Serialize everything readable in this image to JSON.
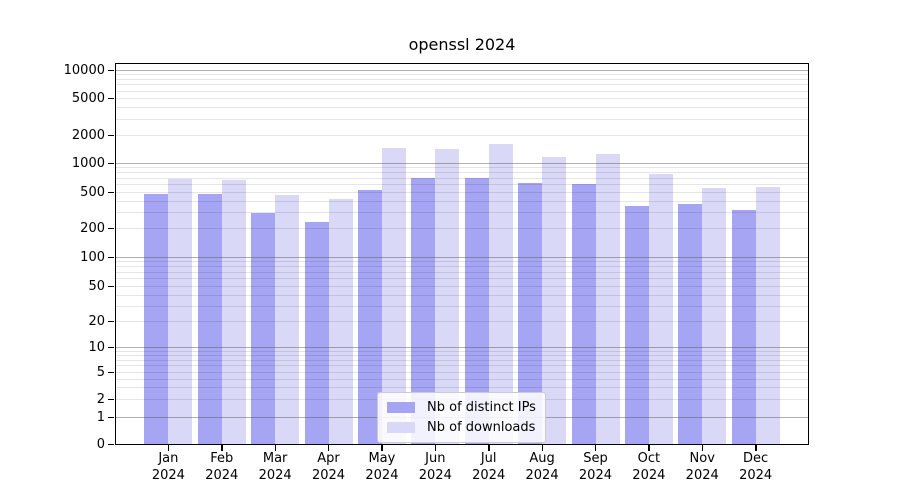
{
  "title": "openssl 2024",
  "chart_data": {
    "type": "bar",
    "title": "openssl 2024",
    "categories": [
      "Jan",
      "Feb",
      "Mar",
      "Apr",
      "May",
      "Jun",
      "Jul",
      "Aug",
      "Sep",
      "Oct",
      "Nov",
      "Dec"
    ],
    "year_label": "2024",
    "series": [
      {
        "name": "Nb of distinct IPs",
        "color": "#a5a5f3",
        "values": [
          470,
          480,
          290,
          235,
          525,
          700,
          700,
          620,
          600,
          355,
          370,
          320
        ]
      },
      {
        "name": "Nb of downloads",
        "color": "#d9d9f7",
        "values": [
          690,
          660,
          460,
          420,
          1450,
          1400,
          1600,
          1150,
          1250,
          770,
          550,
          560
        ]
      }
    ],
    "xlabel": "",
    "ylabel": "",
    "yscale": "symlog",
    "y_ticks": [
      0,
      1,
      2,
      5,
      10,
      20,
      50,
      100,
      200,
      500,
      1000,
      2000,
      5000,
      10000
    ],
    "ylim": [
      0,
      11500
    ],
    "grid": true,
    "legend_position": "lower center"
  },
  "colors": {
    "bar_distinct_ips": "#a5a5f3",
    "bar_downloads": "#d9d9f7",
    "grid_major": "#b3b3b3",
    "grid_minor": "#e6e6e6",
    "spine": "#000000",
    "background": "#ffffff"
  }
}
